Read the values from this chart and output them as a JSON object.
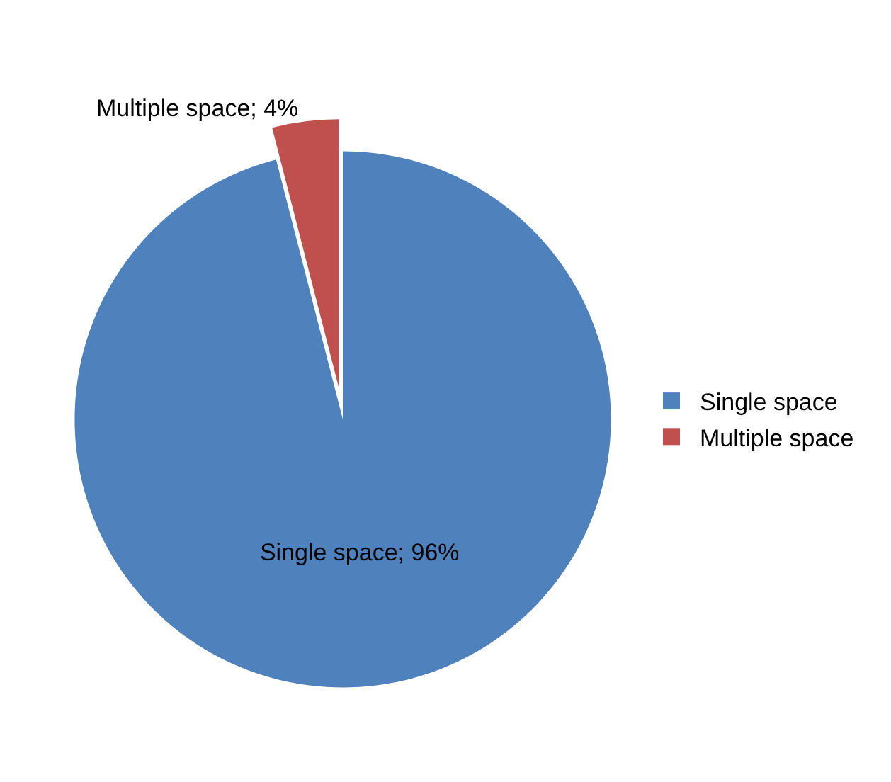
{
  "chart_data": {
    "type": "pie",
    "categories": [
      "Single space",
      "Multiple space"
    ],
    "values": [
      96,
      4
    ],
    "colors": [
      "#4f81bd",
      "#c0504d"
    ],
    "value_labels": [
      "Single space; 96%",
      "Multiple space; 4%"
    ],
    "legend": "right"
  }
}
